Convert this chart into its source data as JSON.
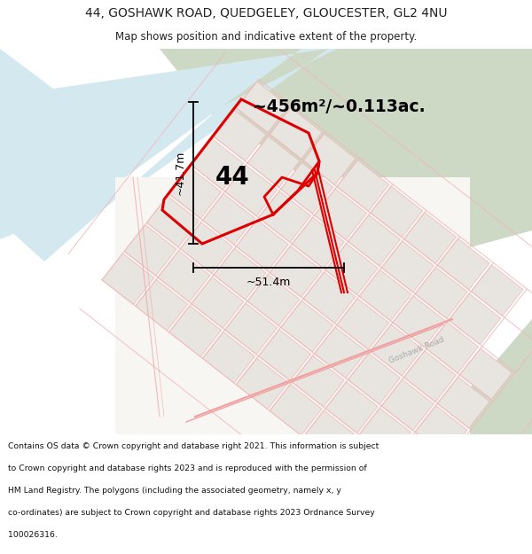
{
  "title_line1": "44, GOSHAWK ROAD, QUEDGELEY, GLOUCESTER, GL2 4NU",
  "title_line2": "Map shows position and indicative extent of the property.",
  "area_text": "~456m²/~0.113ac.",
  "label_44": "44",
  "dim_vertical": "~41.7m",
  "dim_horizontal": "~51.4m",
  "footer_lines": [
    "Contains OS data © Crown copyright and database right 2021. This information is subject",
    "to Crown copyright and database rights 2023 and is reproduced with the permission of",
    "HM Land Registry. The polygons (including the associated geometry, namely x, y",
    "co-ordinates) are subject to Crown copyright and database rights 2023 Ordnance Survey",
    "100026316."
  ],
  "bg_white": "#ffffff",
  "water_color": "#d4e8f0",
  "green_color": "#cdd8c5",
  "plot_red": "#dd0000",
  "grid_pink": "#f0b8b8",
  "block_fill": "#e8e4e0",
  "map_bg": "#f5f2ee"
}
